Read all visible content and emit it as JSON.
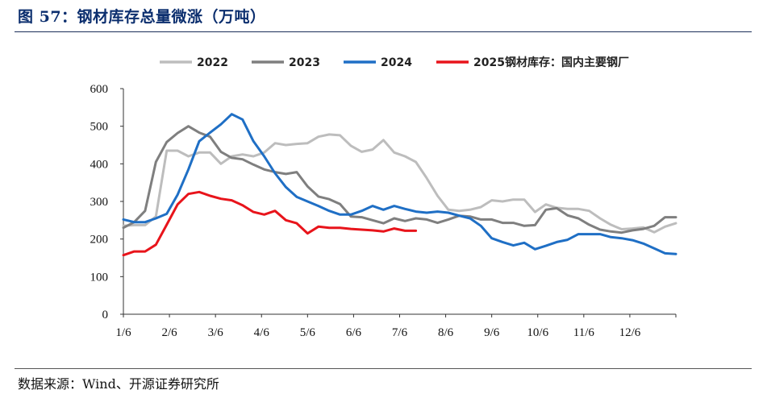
{
  "title": "图 57：钢材库存总量微涨（万吨）",
  "source": "数据来源：Wind、开源证券研究所",
  "chart_data": {
    "type": "line",
    "title": "",
    "xlabel": "",
    "ylabel": "",
    "ylim": [
      0,
      600
    ],
    "yticks": [
      0,
      100,
      200,
      300,
      400,
      500,
      600
    ],
    "xlim": [
      1,
      52
    ],
    "xtick_labels": [
      "1/6",
      "2/6",
      "3/6",
      "4/6",
      "5/6",
      "6/6",
      "7/6",
      "8/6",
      "9/6",
      "10/6",
      "11/6",
      "12/6"
    ],
    "grid": false,
    "legend_position": "top",
    "series": [
      {
        "name": "2022",
        "color": "#bdbdbd",
        "x": [
          1,
          2,
          3,
          4,
          5,
          6,
          7,
          8,
          9,
          10,
          11,
          12,
          13,
          14,
          15,
          16,
          17,
          18,
          19,
          20,
          21,
          22,
          23,
          24,
          25,
          26,
          27,
          28,
          29,
          30,
          31,
          32,
          33,
          34,
          35,
          36,
          37,
          38,
          39,
          40,
          41,
          42,
          43,
          44,
          45,
          46,
          47,
          48,
          49,
          50,
          51,
          52
        ],
        "values": [
          235,
          237,
          237,
          260,
          435,
          435,
          420,
          430,
          430,
          400,
          420,
          425,
          420,
          430,
          455,
          450,
          453,
          455,
          472,
          478,
          476,
          448,
          432,
          438,
          463,
          430,
          420,
          405,
          362,
          315,
          278,
          275,
          278,
          285,
          303,
          300,
          305,
          305,
          272,
          292,
          283,
          280,
          280,
          275,
          255,
          238,
          226,
          228,
          231,
          218,
          233,
          242
        ]
      },
      {
        "name": "2023",
        "color": "#7f7f7f",
        "x": [
          1,
          2,
          3,
          4,
          5,
          6,
          7,
          8,
          9,
          10,
          11,
          12,
          13,
          14,
          15,
          16,
          17,
          18,
          19,
          20,
          21,
          22,
          23,
          24,
          25,
          26,
          27,
          28,
          29,
          30,
          31,
          32,
          33,
          34,
          35,
          36,
          37,
          38,
          39,
          40,
          41,
          42,
          43,
          44,
          45,
          46,
          47,
          48,
          49,
          50,
          51,
          52
        ],
        "values": [
          230,
          245,
          275,
          405,
          458,
          482,
          500,
          483,
          472,
          432,
          416,
          412,
          398,
          385,
          378,
          373,
          378,
          340,
          313,
          306,
          293,
          260,
          258,
          250,
          242,
          255,
          248,
          255,
          252,
          243,
          252,
          262,
          260,
          252,
          252,
          243,
          243,
          235,
          237,
          278,
          282,
          263,
          255,
          238,
          225,
          220,
          217,
          223,
          227,
          235,
          258,
          258
        ]
      },
      {
        "name": "2024",
        "color": "#1f6fc5",
        "x": [
          1,
          2,
          3,
          4,
          5,
          6,
          7,
          8,
          9,
          10,
          11,
          12,
          13,
          14,
          15,
          16,
          17,
          18,
          19,
          20,
          21,
          22,
          23,
          24,
          25,
          26,
          27,
          28,
          29,
          30,
          31,
          32,
          33,
          34,
          35,
          36,
          37,
          38,
          39,
          40,
          41,
          42,
          43,
          44,
          45,
          46,
          47,
          48,
          49,
          50,
          51,
          52
        ],
        "values": [
          252,
          245,
          245,
          255,
          267,
          318,
          385,
          460,
          483,
          505,
          532,
          518,
          460,
          420,
          375,
          338,
          312,
          300,
          288,
          275,
          265,
          265,
          275,
          288,
          278,
          288,
          280,
          273,
          270,
          273,
          270,
          262,
          255,
          235,
          202,
          192,
          183,
          190,
          173,
          182,
          192,
          198,
          213,
          213,
          213,
          205,
          202,
          197,
          188,
          175,
          162,
          160
        ]
      },
      {
        "name": "2025钢材库存：国内主要钢厂",
        "color": "#e8141b",
        "x": [
          1,
          2,
          3,
          4,
          5,
          6,
          7,
          8,
          9,
          10,
          11,
          12,
          13,
          14,
          15,
          16,
          17,
          18,
          19,
          20,
          21,
          22,
          23,
          24,
          25,
          26,
          27,
          28
        ],
        "values": [
          157,
          167,
          167,
          185,
          238,
          292,
          320,
          325,
          315,
          307,
          303,
          290,
          272,
          265,
          275,
          250,
          242,
          215,
          233,
          230,
          230,
          227,
          225,
          223,
          220,
          228,
          222,
          222
        ]
      }
    ]
  }
}
